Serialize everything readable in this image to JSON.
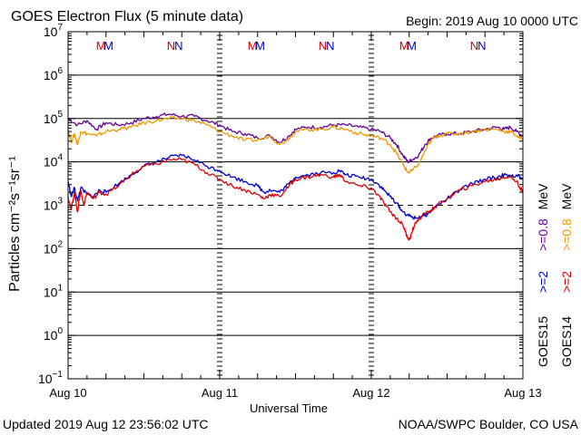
{
  "chart_data": {
    "type": "line",
    "title": "GOES Electron Flux (5 minute data)",
    "begin_label": "Begin: 2019 Aug 10 0000 UTC",
    "xlabel": "Universal Time",
    "ylabel": "Particles cm⁻²s⁻¹sr⁻¹",
    "x_ticks": [
      "Aug 10",
      "Aug 11",
      "Aug 12",
      "Aug 13"
    ],
    "xlim": [
      0,
      72
    ],
    "ylim_log10": [
      -1,
      7
    ],
    "y_tick_exponents": [
      7,
      6,
      5,
      4,
      3,
      2,
      1,
      0,
      -1
    ],
    "y_scale": "log",
    "threshold_log10": 3,
    "grid": "horizontal-decades",
    "markers": [
      {
        "label": "M",
        "hour": 5.2,
        "color": "#dd0000"
      },
      {
        "label": "M",
        "hour": 6.4,
        "color": "#0000cc"
      },
      {
        "label": "N",
        "hour": 16.3,
        "color": "#dd0000"
      },
      {
        "label": "N",
        "hour": 17.5,
        "color": "#0000cc"
      },
      {
        "label": "M",
        "hour": 29.2,
        "color": "#dd0000"
      },
      {
        "label": "M",
        "hour": 30.4,
        "color": "#0000cc"
      },
      {
        "label": "N",
        "hour": 40.3,
        "color": "#dd0000"
      },
      {
        "label": "N",
        "hour": 41.5,
        "color": "#0000cc"
      },
      {
        "label": "M",
        "hour": 53.2,
        "color": "#dd0000"
      },
      {
        "label": "M",
        "hour": 54.4,
        "color": "#0000cc"
      },
      {
        "label": "N",
        "hour": 64.3,
        "color": "#dd0000"
      },
      {
        "label": "N",
        "hour": 65.5,
        "color": "#0000cc"
      }
    ],
    "side_legend": [
      {
        "text": "GOES15",
        "color": "#000000"
      },
      {
        "text": ">=2",
        "color": "#0000cc"
      },
      {
        "text": ">=0.8",
        "color": "#660099"
      },
      {
        "text": "GOES14",
        "color": "#000000"
      },
      {
        "text": ">=2",
        "color": "#dd0000"
      },
      {
        "text": ">=0.8",
        "color": "#ee9900"
      },
      {
        "text": "MeV",
        "color": "#000000"
      },
      {
        "text": "MeV",
        "color": "#000000"
      }
    ],
    "series": [
      {
        "name": "GOES15 >=0.8 MeV",
        "color": "#660099",
        "x": [
          0,
          1.5,
          3,
          4.5,
          6,
          8,
          10,
          12,
          14,
          16,
          18,
          20,
          22,
          24,
          26,
          28,
          30,
          32,
          33.5,
          35,
          36,
          38,
          40,
          42,
          44,
          46,
          48,
          49.5,
          51,
          52,
          53,
          53.8,
          54.5,
          55.5,
          56.5,
          57.5,
          58.5,
          60,
          62,
          64,
          66,
          68,
          69,
          70,
          71,
          72
        ],
        "y": [
          5.0,
          4.85,
          4.95,
          4.75,
          4.9,
          4.85,
          4.9,
          5.0,
          5.05,
          5.1,
          5.05,
          5.05,
          4.95,
          4.85,
          4.7,
          4.65,
          4.55,
          4.6,
          4.45,
          4.6,
          4.75,
          4.8,
          4.8,
          4.85,
          4.85,
          4.8,
          4.75,
          4.7,
          4.55,
          4.4,
          4.15,
          4.0,
          4.05,
          4.15,
          4.4,
          4.55,
          4.6,
          4.65,
          4.65,
          4.7,
          4.75,
          4.8,
          4.75,
          4.8,
          4.7,
          4.6
        ]
      },
      {
        "name": "GOES14 >=0.8 MeV",
        "color": "#ee9900",
        "x": [
          0,
          0.5,
          1,
          1.5,
          2,
          3,
          4.5,
          6,
          8,
          10,
          12,
          14,
          16,
          18,
          20,
          22,
          24,
          26,
          28,
          30,
          32,
          33.5,
          35,
          36,
          38,
          40,
          42,
          44,
          46,
          48,
          49.5,
          51,
          52,
          53,
          53.8,
          54.5,
          55.5,
          56.5,
          57.5,
          58.5,
          60,
          62,
          64,
          66,
          68,
          69,
          70,
          71,
          72
        ],
        "y": [
          4.75,
          4.45,
          4.65,
          4.4,
          4.7,
          4.65,
          4.6,
          4.7,
          4.75,
          4.8,
          4.9,
          4.95,
          5.0,
          5.0,
          4.95,
          4.85,
          4.7,
          4.6,
          4.5,
          4.5,
          4.6,
          4.4,
          4.55,
          4.7,
          4.75,
          4.75,
          4.8,
          4.75,
          4.65,
          4.6,
          4.55,
          4.4,
          4.2,
          3.95,
          3.75,
          3.8,
          3.95,
          4.25,
          4.5,
          4.6,
          4.65,
          4.65,
          4.7,
          4.75,
          4.75,
          4.7,
          4.7,
          4.6,
          4.5
        ]
      },
      {
        "name": "GOES15 >=2 MeV",
        "color": "#0000cc",
        "x": [
          0,
          0.5,
          1,
          1.5,
          2,
          3,
          4,
          5,
          6,
          8,
          10,
          12,
          14,
          16,
          18,
          20,
          22,
          24,
          26,
          28,
          30,
          31,
          32,
          33.5,
          35,
          36,
          38,
          40,
          42,
          43,
          44,
          46,
          48,
          49,
          50,
          51,
          52,
          53,
          54,
          55,
          56,
          57,
          58,
          60,
          62,
          64,
          66,
          68,
          69,
          70,
          71,
          72
        ],
        "y": [
          3.55,
          3.2,
          3.4,
          3.1,
          3.4,
          3.25,
          3.2,
          3.35,
          3.3,
          3.5,
          3.7,
          3.9,
          4.0,
          4.1,
          4.15,
          4.05,
          3.9,
          3.8,
          3.65,
          3.55,
          3.45,
          3.3,
          3.35,
          3.3,
          3.5,
          3.65,
          3.7,
          3.75,
          3.75,
          3.8,
          3.7,
          3.65,
          3.6,
          3.5,
          3.35,
          3.2,
          3.05,
          2.85,
          2.75,
          2.7,
          2.75,
          2.8,
          2.95,
          3.15,
          3.35,
          3.5,
          3.6,
          3.65,
          3.7,
          3.65,
          3.7,
          3.6
        ]
      },
      {
        "name": "GOES14 >=2 MeV",
        "color": "#dd0000",
        "x": [
          0,
          0.5,
          1,
          1.5,
          2,
          2.5,
          3,
          4,
          5,
          6,
          8,
          10,
          12,
          14,
          16,
          18,
          20,
          22,
          24,
          26,
          28,
          30,
          31,
          32,
          33.5,
          35,
          36,
          38,
          40,
          42,
          43,
          44,
          46,
          48,
          49,
          50,
          51,
          52,
          53,
          53.5,
          54,
          54.5,
          55,
          56,
          57,
          58,
          60,
          62,
          64,
          66,
          68,
          69,
          70,
          71,
          72
        ],
        "y": [
          3.2,
          2.9,
          3.3,
          2.85,
          3.35,
          3.0,
          3.3,
          3.15,
          3.3,
          3.25,
          3.45,
          3.7,
          3.9,
          3.95,
          4.05,
          4.05,
          3.95,
          3.75,
          3.6,
          3.45,
          3.35,
          3.25,
          3.15,
          3.25,
          3.2,
          3.45,
          3.6,
          3.65,
          3.7,
          3.65,
          3.7,
          3.55,
          3.45,
          3.4,
          3.25,
          3.05,
          2.85,
          2.7,
          2.55,
          2.35,
          2.2,
          2.4,
          2.6,
          2.75,
          2.85,
          2.95,
          3.15,
          3.35,
          3.45,
          3.55,
          3.6,
          3.65,
          3.65,
          3.55,
          3.3
        ]
      }
    ]
  },
  "footer": {
    "updated": "Updated 2019 Aug 12 23:56:02 UTC",
    "source": "NOAA/SWPC Boulder, CO USA"
  }
}
